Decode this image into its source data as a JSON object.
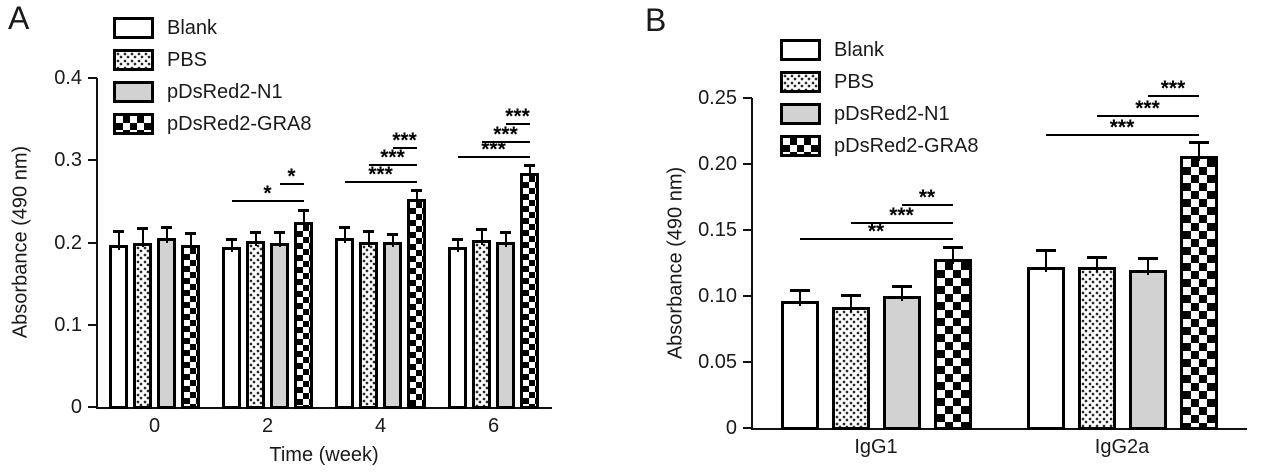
{
  "figure_title": "",
  "colors": {
    "ink": "#111111",
    "bar_gray": "#d2d2d2",
    "background": "#ffffff"
  },
  "chart_data": [
    {
      "type": "bar",
      "panel_label": "A",
      "title": "",
      "xlabel": "Time (week)",
      "ylabel": "Absorbance (490 nm)",
      "ylim": [
        0,
        0.4
      ],
      "yticks": [
        "0",
        "0.1",
        "0.2",
        "0.3",
        "0.4"
      ],
      "grid": false,
      "legend_position": "top-left-inside",
      "categories": [
        "0",
        "2",
        "4",
        "6"
      ],
      "series": [
        {
          "name": "Blank",
          "fill": "white",
          "values": [
            0.197,
            0.195,
            0.206,
            0.195
          ],
          "errors": [
            0.016,
            0.008,
            0.012,
            0.008
          ]
        },
        {
          "name": "PBS",
          "fill": "dots",
          "values": [
            0.2,
            0.202,
            0.201,
            0.203
          ],
          "errors": [
            0.016,
            0.009,
            0.012,
            0.012
          ]
        },
        {
          "name": "pDsRed2-N1",
          "fill": "gray",
          "values": [
            0.205,
            0.2,
            0.201,
            0.201
          ],
          "errors": [
            0.013,
            0.011,
            0.008,
            0.01
          ]
        },
        {
          "name": "pDsRed2-GRA8",
          "fill": "checker",
          "values": [
            0.197,
            0.225,
            0.253,
            0.284
          ],
          "errors": [
            0.013,
            0.013,
            0.01,
            0.009
          ]
        }
      ],
      "significance": [
        {
          "category": "2",
          "from": "Blank",
          "to": "pDsRed2-GRA8",
          "label": "*",
          "level": 0.252
        },
        {
          "category": "2",
          "from": "pDsRed2-N1",
          "to": "pDsRed2-GRA8",
          "label": "*",
          "level": 0.272
        },
        {
          "category": "4",
          "from": "Blank",
          "to": "pDsRed2-GRA8",
          "label": "***",
          "level": 0.275
        },
        {
          "category": "4",
          "from": "PBS",
          "to": "pDsRed2-GRA8",
          "label": "***",
          "level": 0.295
        },
        {
          "category": "4",
          "from": "pDsRed2-N1",
          "to": "pDsRed2-GRA8",
          "label": "***",
          "level": 0.316
        },
        {
          "category": "6",
          "from": "Blank",
          "to": "pDsRed2-GRA8",
          "label": "***",
          "level": 0.305
        },
        {
          "category": "6",
          "from": "PBS",
          "to": "pDsRed2-GRA8",
          "label": "***",
          "level": 0.324
        },
        {
          "category": "6",
          "from": "pDsRed2-N1",
          "to": "pDsRed2-GRA8",
          "label": "***",
          "level": 0.345
        }
      ]
    },
    {
      "type": "bar",
      "panel_label": "B",
      "title": "",
      "xlabel": "",
      "ylabel": "Absorbance (490 nm)",
      "ylim": [
        0,
        0.25
      ],
      "yticks": [
        "0",
        "0.05",
        "0.10",
        "0.15",
        "0.20",
        "0.25"
      ],
      "grid": false,
      "legend_position": "top-left-inside",
      "categories": [
        "IgG1",
        "IgG2a"
      ],
      "series": [
        {
          "name": "Blank",
          "fill": "white",
          "values": [
            0.096,
            0.122
          ],
          "errors": [
            0.008,
            0.012
          ]
        },
        {
          "name": "PBS",
          "fill": "dots",
          "values": [
            0.092,
            0.122
          ],
          "errors": [
            0.008,
            0.007
          ]
        },
        {
          "name": "pDsRed2-N1",
          "fill": "gray",
          "values": [
            0.1,
            0.12
          ],
          "errors": [
            0.007,
            0.008
          ]
        },
        {
          "name": "pDsRed2-GRA8",
          "fill": "checker",
          "values": [
            0.128,
            0.206
          ],
          "errors": [
            0.008,
            0.01
          ]
        }
      ],
      "significance": [
        {
          "category": "IgG1",
          "from": "Blank",
          "to": "pDsRed2-GRA8",
          "label": "**",
          "level": 0.144
        },
        {
          "category": "IgG1",
          "from": "PBS",
          "to": "pDsRed2-GRA8",
          "label": "***",
          "level": 0.156
        },
        {
          "category": "IgG1",
          "from": "pDsRed2-N1",
          "to": "pDsRed2-GRA8",
          "label": "**",
          "level": 0.17
        },
        {
          "category": "IgG2a",
          "from": "Blank",
          "to": "pDsRed2-GRA8",
          "label": "***",
          "level": 0.223
        },
        {
          "category": "IgG2a",
          "from": "PBS",
          "to": "pDsRed2-GRA8",
          "label": "***",
          "level": 0.237
        },
        {
          "category": "IgG2a",
          "from": "pDsRed2-N1",
          "to": "pDsRed2-GRA8",
          "label": "***",
          "level": 0.252
        }
      ]
    }
  ]
}
